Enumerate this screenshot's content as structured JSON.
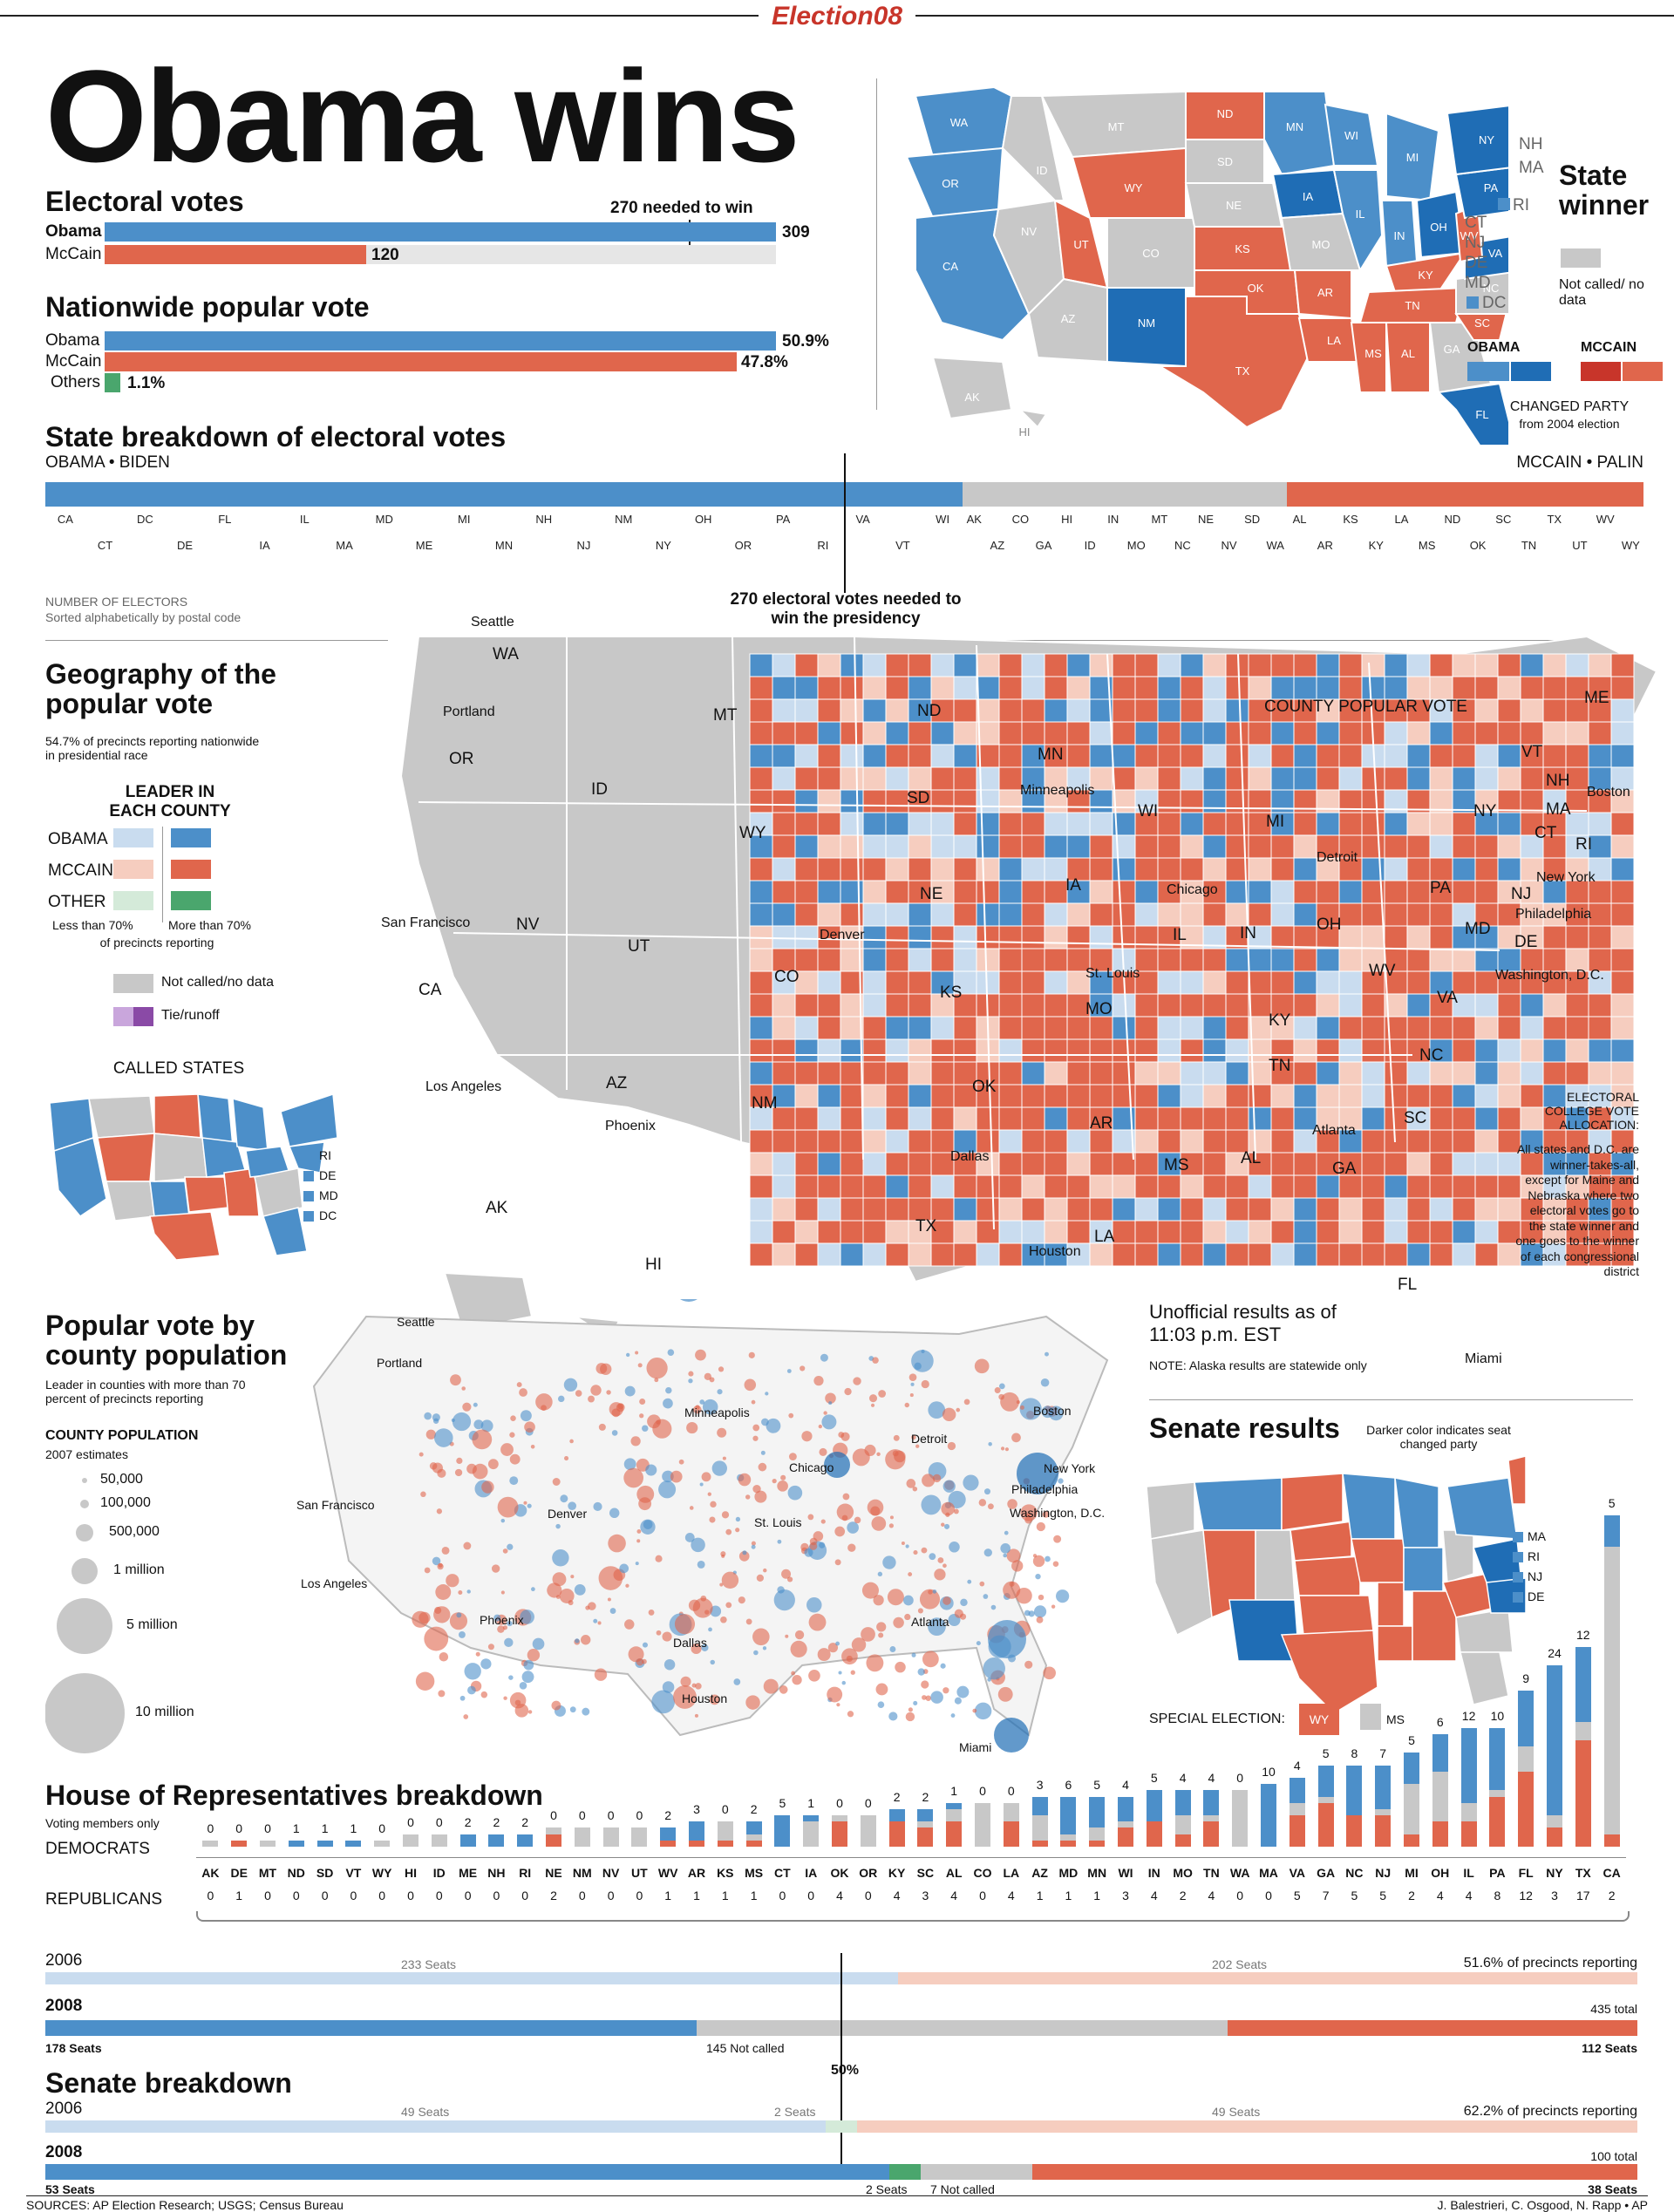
{
  "header": {
    "brand": "Election08",
    "headline": "Obama wins"
  },
  "electoral": {
    "title": "Electoral votes",
    "needed_label": "270 needed to win",
    "rows": [
      {
        "name": "Obama",
        "value": "309",
        "fraction": 0.574
      },
      {
        "name": "McCain",
        "value": "120",
        "fraction": 0.223
      }
    ]
  },
  "popular": {
    "title": "Nationwide popular vote",
    "rows": [
      {
        "name": "Obama",
        "value": "50.9%",
        "fraction": 0.509
      },
      {
        "name": "McCain",
        "value": "47.8%",
        "fraction": 0.478
      },
      {
        "name": "Others",
        "value": "1.1%",
        "fraction": 0.011
      }
    ]
  },
  "state_winner": {
    "title": "State winner",
    "not_called": "Not called/ no data",
    "obama": "OBAMA",
    "mccain": "MCCAIN",
    "changed": "CHANGED PARTY",
    "changed_sub": "from 2004 election",
    "map_labels": [
      "WA",
      "OR",
      "CA",
      "NV",
      "ID",
      "MT",
      "WY",
      "UT",
      "CO",
      "AZ",
      "NM",
      "ND",
      "SD",
      "NE",
      "KS",
      "OK",
      "TX",
      "MN",
      "IA",
      "MO",
      "AR",
      "LA",
      "WI",
      "IL",
      "MI",
      "IN",
      "OH",
      "KY",
      "TN",
      "MS",
      "AL",
      "GA",
      "FL",
      "SC",
      "NC",
      "VA",
      "WV",
      "PA",
      "NY",
      "VT",
      "NH",
      "ME",
      "MA",
      "RI",
      "CT",
      "NJ",
      "DE",
      "MD",
      "DC",
      "AK",
      "HI"
    ]
  },
  "state_breakdown": {
    "title": "State breakdown of electoral votes",
    "left": "OBAMA • BIDEN",
    "right": "MCCAIN • PALIN",
    "number_label": "NUMBER OF ELECTORS",
    "sort_label": "Sorted alphabetically by postal code",
    "needed": "270 electoral votes needed to win the presidency",
    "obama_states": [
      "CA",
      "CT",
      "DC",
      "DE",
      "FL",
      "IA",
      "IL",
      "MA",
      "MD",
      "ME",
      "MI",
      "MN",
      "NH",
      "NJ",
      "NM",
      "NY",
      "OH",
      "OR",
      "PA",
      "RI",
      "VA",
      "VT",
      "WI"
    ],
    "gray_states": [
      "AK",
      "AZ",
      "CO",
      "GA",
      "HI",
      "ID",
      "IN",
      "MO",
      "MT",
      "NC",
      "NE",
      "NV",
      "SD",
      "WA"
    ],
    "red_states": [
      "AL",
      "AR",
      "KS",
      "KY",
      "LA",
      "MS",
      "ND",
      "OK",
      "SC",
      "TN",
      "TX",
      "UT",
      "WV",
      "WY"
    ]
  },
  "geography": {
    "title": "Geography of the popular vote",
    "note": "54.7% of precincts reporting nationwide in presidential race",
    "legend_title": "LEADER IN EACH COUNTY",
    "obama": "OBAMA",
    "mccain": "MCCAIN",
    "other": "OTHER",
    "less": "Less than 70%",
    "more": "More than 70%",
    "of_prec": "of precincts reporting",
    "not_called": "Not called/no data",
    "tie": "Tie/runoff",
    "called_states": "CALLED STATES",
    "called_small": [
      "RI",
      "DE",
      "MD",
      "DC"
    ],
    "county_pop_vote": "COUNTY POPULAR VOTE",
    "cities": [
      "Seattle",
      "Portland",
      "San Francisco",
      "Los Angeles",
      "Phoenix",
      "Denver",
      "Minneapolis",
      "Chicago",
      "St. Louis",
      "Detroit",
      "Dallas",
      "Houston",
      "Atlanta",
      "Miami",
      "Boston",
      "New York",
      "Philadelphia",
      "Washington, D.C."
    ],
    "ecv_title": "ELECTORAL COLLEGE VOTE ALLOCATION:",
    "ecv_text": "All states and D.C. are winner-takes-all, except for Maine and Nebraska where two electoral votes go to the state winner and one goes to the winner of each congressional district",
    "unofficial": "Unofficial results as of 11:03 p.m. EST",
    "alaska_note": "NOTE: Alaska results are statewide only"
  },
  "county_pop": {
    "title": "Popular vote by county population",
    "note": "Leader in counties with more than 70 percent of precincts reporting",
    "legend_title": "COUNTY POPULATION",
    "legend_sub": "2007 estimates",
    "sizes": [
      "50,000",
      "100,000",
      "500,000",
      "1 million",
      "5 million",
      "10 million"
    ]
  },
  "senate_map": {
    "title": "Senate results",
    "note": "Darker color indicates seat changed party",
    "small": [
      "MA",
      "RI",
      "NJ",
      "DE"
    ],
    "special": "SPECIAL ELECTION:",
    "special_states": [
      "WY",
      "MS"
    ]
  },
  "house": {
    "title": "House of Representatives breakdown",
    "sub": "Voting members only",
    "dem_label": "DEMOCRATS",
    "rep_label": "REPUBLICANS",
    "states": [
      "AK",
      "DE",
      "MT",
      "ND",
      "SD",
      "VT",
      "WY",
      "HI",
      "ID",
      "ME",
      "NH",
      "RI",
      "NE",
      "NM",
      "NV",
      "UT",
      "WV",
      "AR",
      "KS",
      "MS",
      "CT",
      "IA",
      "OK",
      "OR",
      "KY",
      "SC",
      "AL",
      "CO",
      "LA",
      "AZ",
      "MD",
      "MN",
      "WI",
      "IN",
      "MO",
      "TN",
      "WA",
      "MA",
      "VA",
      "GA",
      "NC",
      "NJ",
      "MI",
      "OH",
      "IL",
      "PA",
      "FL",
      "NY",
      "TX",
      "CA"
    ],
    "dem": [
      "0",
      "0",
      "0",
      "1",
      "1",
      "1",
      "0",
      "0",
      "0",
      "2",
      "2",
      "2",
      "0",
      "0",
      "0",
      "0",
      "2",
      "3",
      "0",
      "2",
      "5",
      "1",
      "0",
      "0",
      "2",
      "2",
      "1",
      "0",
      "0",
      "3",
      "6",
      "5",
      "4",
      "5",
      "4",
      "4",
      "0",
      "10",
      "4",
      "5",
      "8",
      "7",
      "5",
      "6",
      "12",
      "10",
      "9",
      "24",
      "12",
      "5"
    ],
    "rep": [
      "0",
      "1",
      "0",
      "0",
      "0",
      "0",
      "0",
      "0",
      "0",
      "0",
      "0",
      "0",
      "2",
      "0",
      "0",
      "0",
      "1",
      "1",
      "1",
      "1",
      "0",
      "0",
      "4",
      "0",
      "4",
      "3",
      "4",
      "0",
      "4",
      "1",
      "1",
      "1",
      "3",
      "4",
      "2",
      "4",
      "0",
      "0",
      "5",
      "7",
      "5",
      "5",
      "2",
      "4",
      "4",
      "8",
      "12",
      "3",
      "17",
      "2"
    ],
    "totals": [
      1,
      1,
      1,
      1,
      1,
      1,
      1,
      2,
      2,
      2,
      2,
      2,
      3,
      3,
      3,
      3,
      3,
      4,
      4,
      4,
      5,
      5,
      5,
      5,
      6,
      6,
      7,
      7,
      7,
      8,
      8,
      8,
      8,
      9,
      9,
      9,
      9,
      10,
      11,
      13,
      13,
      13,
      15,
      18,
      19,
      19,
      25,
      29,
      32,
      53
    ],
    "y2006": "2006",
    "y2008": "2008",
    "seats_2006_dem": "233 Seats",
    "seats_2006_rep": "202 Seats",
    "pct_reporting": "51.6% of precincts reporting",
    "total": "435 total",
    "dem_2008": "178 Seats",
    "notcalled_2008": "145 Not called",
    "rep_2008": "112 Seats",
    "dem_2008_n": 178,
    "nc_2008_n": 145,
    "rep_2008_n": 112,
    "dem_2006_n": 233,
    "rep_2006_n": 202
  },
  "senate": {
    "title": "Senate breakdown",
    "fifty": "50%",
    "y2006": "2006",
    "y2008": "2008",
    "dem_2006": "49 Seats",
    "ind_2006": "2 Seats",
    "rep_2006": "49 Seats",
    "pct_reporting": "62.2% of precincts reporting",
    "total": "100 total",
    "dem_2008": "53 Seats",
    "ind_2008": "2 Seats",
    "nc_2008": "7 Not called",
    "rep_2008": "38 Seats",
    "dem_2008_n": 53,
    "ind_2008_n": 2,
    "nc_2008_n": 7,
    "rep_2008_n": 38
  },
  "footer": {
    "sources": "SOURCES: AP Election Research; USGS; Census Bureau",
    "credits": "J. Balestrieri, C. Osgood, N. Rapp • AP"
  }
}
